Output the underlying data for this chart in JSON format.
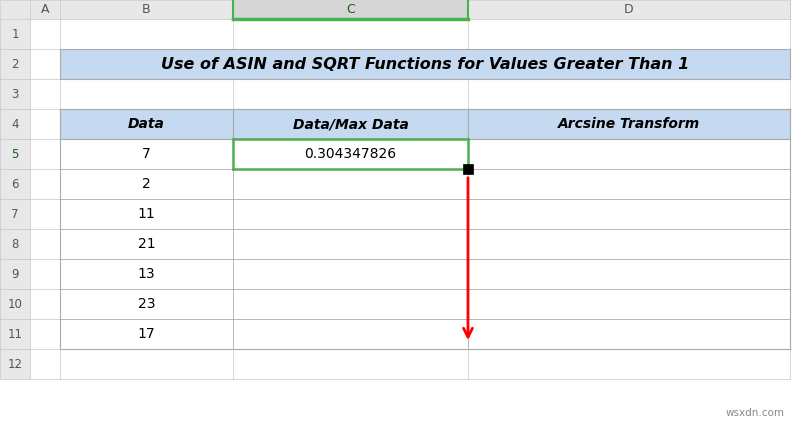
{
  "title": "Use of ASIN and SQRT Functions for Values Greater Than 1",
  "col_headers": [
    "Data",
    "Data/Max Data",
    "Arcsine Transform"
  ],
  "data_rows": [
    [
      "7",
      "0.304347826",
      ""
    ],
    [
      "2",
      "",
      ""
    ],
    [
      "11",
      "",
      ""
    ],
    [
      "21",
      "",
      ""
    ],
    [
      "13",
      "",
      ""
    ],
    [
      "23",
      "",
      ""
    ],
    [
      "17",
      "",
      ""
    ]
  ],
  "col_letters": [
    "A",
    "B",
    "C",
    "D"
  ],
  "bg_color": "#FFFFFF",
  "title_bg": "#C5D9F1",
  "col_header_bg": "#C5D9F1",
  "row_num_bg": "#E8E8E8",
  "col_letter_bg": "#E8E8E8",
  "col_c_selected_bg": "#D6D6D6",
  "green_border": "#4CAF50",
  "arrow_color": "#FF0000",
  "watermark": "wsxdn.com",
  "title_fontsize": 11.5,
  "header_fontsize": 10,
  "data_fontsize": 10,
  "watermark_fontsize": 7.5,
  "row_num_fontsize": 8.5,
  "col_letter_fontsize": 9,
  "col_letter_c_fontsize": 9,
  "grid_light": "#C8C8C8",
  "grid_dark": "#999999",
  "cell_border": "#AAAAAA"
}
